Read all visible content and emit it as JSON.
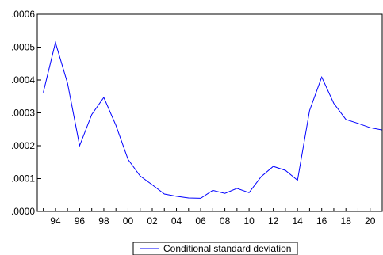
{
  "chart_data": {
    "type": "line",
    "title": "",
    "xlabel": "",
    "ylabel": "",
    "x": [
      1993,
      1994,
      1995,
      1996,
      1997,
      1998,
      1999,
      2000,
      2001,
      2002,
      2003,
      2004,
      2005,
      2006,
      2007,
      2008,
      2009,
      2010,
      2011,
      2012,
      2013,
      2014,
      2015,
      2016,
      2017,
      2018,
      2019,
      2020,
      2021
    ],
    "series": [
      {
        "name": "Conditional standard deviation",
        "color": "#0000ff",
        "values": [
          0.000362,
          0.000514,
          0.00039,
          0.0002,
          0.000295,
          0.000347,
          0.000262,
          0.000158,
          0.000108,
          8.1e-05,
          5.3e-05,
          4.6e-05,
          4.1e-05,
          4e-05,
          6.4e-05,
          5.5e-05,
          7e-05,
          5.7e-05,
          0.000106,
          0.000137,
          0.000125,
          9.5e-05,
          0.000307,
          0.000409,
          0.000329,
          0.00028,
          0.000268,
          0.000255,
          0.000248
        ]
      }
    ],
    "ylim": [
      0,
      0.0006
    ],
    "xlim": [
      1992.5,
      2021.0
    ],
    "yticks": [
      ".0000",
      ".0001",
      ".0002",
      ".0003",
      ".0004",
      ".0005",
      ".0006"
    ],
    "ytick_values": [
      0,
      0.0001,
      0.0002,
      0.0003,
      0.0004,
      0.0005,
      0.0006
    ],
    "xticks": [
      "94",
      "96",
      "98",
      "00",
      "02",
      "04",
      "06",
      "08",
      "10",
      "12",
      "14",
      "16",
      "18",
      "20"
    ],
    "xtick_values": [
      1994,
      1996,
      1998,
      2000,
      2002,
      2004,
      2006,
      2008,
      2010,
      2012,
      2014,
      2016,
      2018,
      2020
    ],
    "grid": false,
    "legend_position": "bottom-center"
  }
}
